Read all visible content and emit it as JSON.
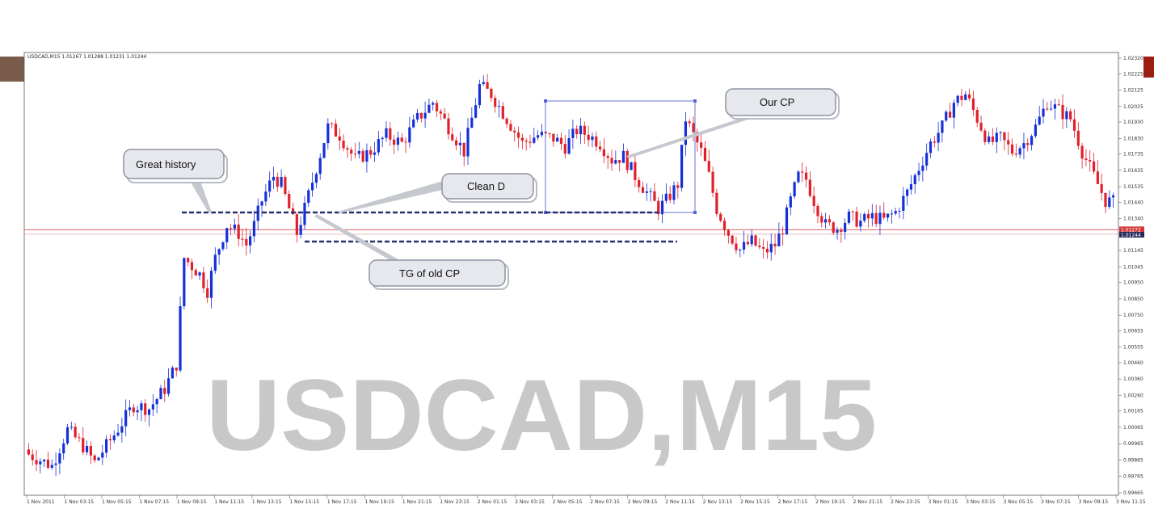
{
  "chart_data": {
    "type": "candlestick",
    "header": "USDCAD,M15  1.01267 1.01288 1.01231 1.01244",
    "watermark": "USDCAD,M15",
    "y_range": [
      0.99665,
      1.0232
    ],
    "price_ticks": [
      "1.02320",
      "1.02225",
      "1.02125",
      "1.02025",
      "1.01930",
      "1.01830",
      "1.01735",
      "1.01635",
      "1.01535",
      "1.01440",
      "1.01340",
      "1.01245",
      "1.01145",
      "1.01045",
      "1.00950",
      "1.00850",
      "1.00750",
      "1.00655",
      "1.00555",
      "1.00460",
      "1.00360",
      "1.00260",
      "1.00165",
      "1.00065",
      "0.99965",
      "0.99865",
      "0.99765",
      "0.99665"
    ],
    "price_tick_values": [
      1.0232,
      1.02225,
      1.02125,
      1.02025,
      1.0193,
      1.0183,
      1.01735,
      1.01635,
      1.01535,
      1.0144,
      1.0134,
      1.01245,
      1.01145,
      1.01045,
      1.0095,
      1.0085,
      1.0075,
      1.00655,
      1.00555,
      1.0046,
      1.0036,
      1.0026,
      1.00165,
      1.00065,
      0.99965,
      0.99865,
      0.99765,
      0.99665
    ],
    "current_price": "1.01244",
    "bid_line_price": "1.01272",
    "time_labels": [
      "1 Nov 2011",
      "1 Nov 03:15",
      "1 Nov 05:15",
      "1 Nov 07:15",
      "1 Nov 09:15",
      "1 Nov 11:15",
      "1 Nov 13:15",
      "1 Nov 15:15",
      "1 Nov 17:15",
      "1 Nov 19:15",
      "1 Nov 21:15",
      "1 Nov 23:15",
      "2 Nov 01:15",
      "2 Nov 03:15",
      "2 Nov 05:15",
      "2 Nov 07:15",
      "2 Nov 09:15",
      "2 Nov 11:15",
      "2 Nov 13:15",
      "2 Nov 15:15",
      "2 Nov 17:15",
      "2 Nov 19:15",
      "2 Nov 21:15",
      "2 Nov 23:15",
      "3 Nov 01:15",
      "3 Nov 03:15",
      "3 Nov 05:15",
      "3 Nov 07:15",
      "3 Nov 09:15",
      "3 Nov 11:15"
    ],
    "close_path": [
      [
        0,
        0.999
      ],
      [
        6,
        0.9983
      ],
      [
        10,
        1.0005
      ],
      [
        14,
        0.9995
      ],
      [
        17,
        0.9985
      ],
      [
        22,
        1.0002
      ],
      [
        27,
        1.002
      ],
      [
        31,
        1.0018
      ],
      [
        35,
        1.003
      ],
      [
        38,
        1.0045
      ],
      [
        40,
        1.011
      ],
      [
        44,
        1.01
      ],
      [
        46,
        1.009
      ],
      [
        48,
        1.011
      ],
      [
        51,
        1.013
      ],
      [
        54,
        1.0125
      ],
      [
        56,
        1.0118
      ],
      [
        58,
        1.013
      ],
      [
        60,
        1.0145
      ],
      [
        63,
        1.016
      ],
      [
        65,
        1.0155
      ],
      [
        67,
        1.014
      ],
      [
        69,
        1.0125
      ],
      [
        71,
        1.014
      ],
      [
        74,
        1.0165
      ],
      [
        77,
        1.019
      ],
      [
        80,
        1.0185
      ],
      [
        84,
        1.017
      ],
      [
        88,
        1.0175
      ],
      [
        92,
        1.0185
      ],
      [
        96,
        1.018
      ],
      [
        100,
        1.0195
      ],
      [
        104,
        1.0205
      ],
      [
        108,
        1.019
      ],
      [
        112,
        1.0175
      ],
      [
        116,
        1.0215
      ],
      [
        119,
        1.021
      ],
      [
        123,
        1.0195
      ],
      [
        127,
        1.018
      ],
      [
        131,
        1.0185
      ],
      [
        135,
        1.0183
      ],
      [
        138,
        1.0178
      ],
      [
        141,
        1.0188
      ],
      [
        144,
        1.0185
      ],
      [
        147,
        1.018
      ],
      [
        150,
        1.017
      ],
      [
        153,
        1.0172
      ],
      [
        156,
        1.016
      ],
      [
        159,
        1.015
      ],
      [
        162,
        1.014
      ],
      [
        164,
        1.0145
      ],
      [
        167,
        1.0155
      ],
      [
        169,
        1.0195
      ],
      [
        171,
        1.0185
      ],
      [
        173,
        1.0175
      ],
      [
        175,
        1.016
      ],
      [
        177,
        1.014
      ],
      [
        180,
        1.0125
      ],
      [
        183,
        1.0115
      ],
      [
        186,
        1.012
      ],
      [
        189,
        1.0113
      ],
      [
        192,
        1.0118
      ],
      [
        194,
        1.0128
      ],
      [
        196,
        1.0145
      ],
      [
        198,
        1.016
      ],
      [
        200,
        1.0158
      ],
      [
        202,
        1.0145
      ],
      [
        205,
        1.013
      ],
      [
        208,
        1.0128
      ],
      [
        211,
        1.0135
      ],
      [
        214,
        1.0132
      ],
      [
        217,
        1.0135
      ],
      [
        220,
        1.0133
      ],
      [
        223,
        1.0138
      ],
      [
        226,
        1.015
      ],
      [
        229,
        1.0165
      ],
      [
        232,
        1.018
      ],
      [
        235,
        1.019
      ],
      [
        238,
        1.0205
      ],
      [
        241,
        1.021
      ],
      [
        244,
        1.0195
      ],
      [
        247,
        1.018
      ],
      [
        250,
        1.0183
      ],
      [
        253,
        1.0175
      ],
      [
        256,
        1.018
      ],
      [
        259,
        1.019
      ],
      [
        262,
        1.0205
      ],
      [
        265,
        1.02
      ],
      [
        268,
        1.0195
      ],
      [
        271,
        1.0175
      ],
      [
        274,
        1.016
      ],
      [
        277,
        1.0145
      ],
      [
        279,
        1.0144
      ]
    ],
    "annotations": [
      {
        "label": "Great history"
      },
      {
        "label": "Clean D"
      },
      {
        "label": "TG of old CP"
      },
      {
        "label": "Our CP"
      }
    ],
    "colors": {
      "bull": "#1530d8",
      "bear": "#e0202a",
      "dash": "#27306e",
      "hline": "#e06060",
      "rect": "#5a64d8"
    }
  }
}
